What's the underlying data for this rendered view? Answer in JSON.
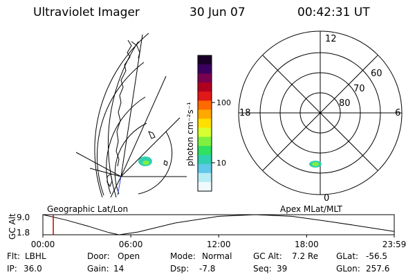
{
  "header": {
    "instrument": "Ultraviolet Imager",
    "date": "30 Jun 07",
    "time": "00:42:31 UT"
  },
  "colorbar": {
    "unit_label": "photon cm⁻²s⁻¹",
    "ticks": [
      "100",
      "10"
    ],
    "scale": "log",
    "colors": [
      "#1a0028",
      "#3a0060",
      "#7a0050",
      "#b00020",
      "#e01818",
      "#ff6a00",
      "#ffa800",
      "#ffe000",
      "#d8ff30",
      "#80f040",
      "#30e060",
      "#30d0b0",
      "#60c8e8",
      "#b8ecf4",
      "#f0fafc"
    ]
  },
  "left_panel": {
    "label": "Geographic Lat/Lon"
  },
  "polar_panel": {
    "label": "Apex MLat/MLT",
    "mlt_labels": [
      "12",
      "18",
      "6",
      "0"
    ],
    "mlat_labels": [
      "60",
      "70",
      "80"
    ]
  },
  "altitude_chart": {
    "ylabel": "GC Alt",
    "yticks": [
      "9.0",
      "1.8"
    ],
    "xticks": [
      "00:00",
      "06:00",
      "12:00",
      "18:00",
      "23:59"
    ]
  },
  "footer": {
    "row1": [
      {
        "key": "Flt:",
        "value": "LBHL"
      },
      {
        "key": "Door:",
        "value": "Open"
      },
      {
        "key": "Mode:",
        "value": "Normal"
      },
      {
        "key": "GC Alt:",
        "value": "7.2 Re"
      },
      {
        "key": "GLat:",
        "value": "-56.5"
      }
    ],
    "row2": [
      {
        "key": "IP:",
        "value": "36.0"
      },
      {
        "key": "Gain:",
        "value": "14"
      },
      {
        "key": "Dsp:",
        "value": "-7.8"
      },
      {
        "key": "Seq:",
        "value": "39"
      },
      {
        "key": "GLon:",
        "value": "257.6"
      }
    ]
  },
  "chart_data": {
    "type": "line",
    "title": "",
    "xlabel": "",
    "ylabel": "GC Alt",
    "x_hours": [
      0,
      1.5,
      3,
      4.5,
      5.2,
      6.5,
      9,
      12,
      14.5,
      17,
      19.5,
      21.5,
      23.98
    ],
    "y": [
      9.0,
      7.2,
      5.0,
      2.6,
      1.8,
      2.8,
      6.0,
      8.4,
      9.0,
      8.4,
      6.6,
      5.0,
      3.0
    ],
    "ylim": [
      1.8,
      9.0
    ],
    "xlim": [
      0,
      23.98
    ],
    "current_time_hours": 0.71,
    "colors": {
      "line": "#000000",
      "marker": "#c00000"
    }
  }
}
